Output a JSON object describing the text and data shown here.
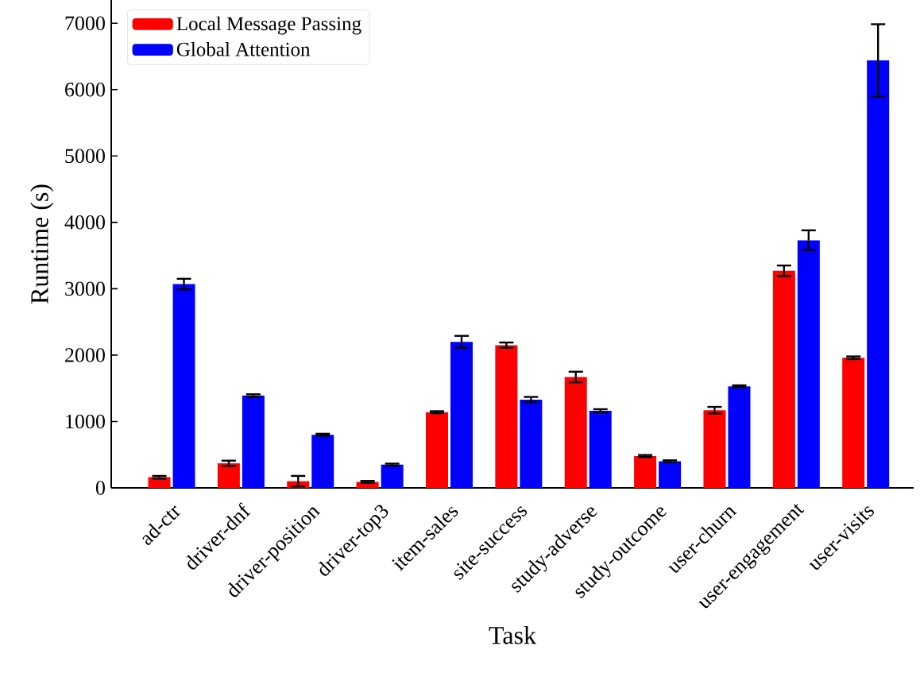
{
  "chart_data": {
    "type": "bar",
    "xlabel": "Task",
    "ylabel": "Runtime (s)",
    "categories": [
      "ad-ctr",
      "driver-dnf",
      "driver-position",
      "driver-top3",
      "item-sales",
      "site-success",
      "study-adverse",
      "study-outcome",
      "user-churn",
      "user-engagement",
      "user-visits"
    ],
    "series": [
      {
        "name": "Local Message Passing",
        "color": "#ff0000",
        "values": [
          160,
          370,
          100,
          90,
          1140,
          2150,
          1670,
          480,
          1170,
          3270,
          1960
        ],
        "errors": [
          20,
          40,
          80,
          15,
          15,
          40,
          80,
          15,
          50,
          80,
          20
        ]
      },
      {
        "name": "Global Attention",
        "color": "#0000ff",
        "values": [
          3070,
          1390,
          800,
          350,
          2200,
          1330,
          1160,
          400,
          1530,
          3730,
          6440
        ],
        "errors": [
          80,
          20,
          15,
          15,
          90,
          40,
          25,
          15,
          15,
          150,
          545
        ]
      }
    ],
    "ylim": [
      0,
      7350
    ],
    "yticks": [
      0,
      1000,
      2000,
      3000,
      4000,
      5000,
      6000,
      7000
    ],
    "legend": "top left"
  }
}
